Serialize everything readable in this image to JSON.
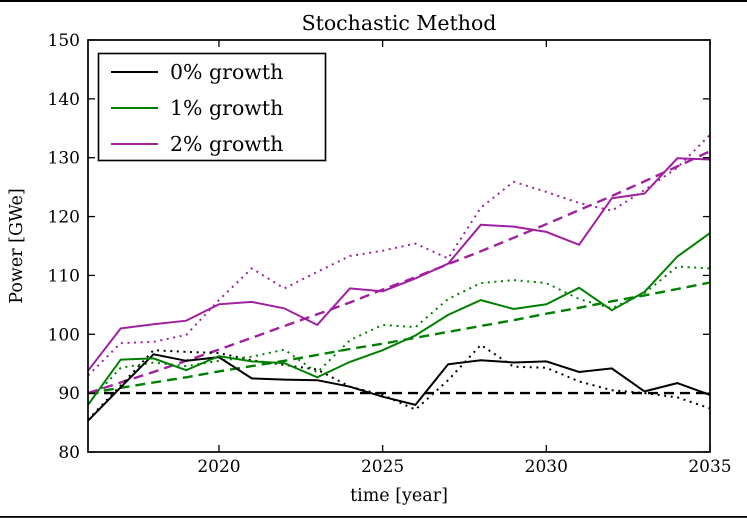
{
  "page": {
    "background": "#ffffff",
    "top_border_color": "#000000",
    "bottom_border_color": "#000000"
  },
  "chart_data": {
    "type": "line",
    "title": "Stochastic Method",
    "xlabel": "time [year]",
    "ylabel": "Power [GWe]",
    "xlim": [
      2016,
      2035
    ],
    "ylim": [
      80,
      150
    ],
    "xticks": [
      2020,
      2025,
      2030,
      2035
    ],
    "yticks": [
      80,
      90,
      100,
      110,
      120,
      130,
      140,
      150
    ],
    "grid": false,
    "legend_position": "upper left",
    "x": [
      2016,
      2017,
      2018,
      2019,
      2020,
      2021,
      2022,
      2023,
      2024,
      2025,
      2026,
      2027,
      2028,
      2029,
      2030,
      2031,
      2032,
      2033,
      2034,
      2035
    ],
    "series": [
      {
        "name": "0% growth dashed target",
        "color": "#000000",
        "style": "dashed",
        "values": [
          90,
          90,
          90,
          90,
          90,
          90,
          90,
          90,
          90,
          90,
          90,
          90,
          90,
          90,
          90,
          90,
          90,
          90,
          90,
          90
        ]
      },
      {
        "name": "1% growth dashed target",
        "color": "#008000",
        "style": "dashed",
        "values": [
          90.0,
          90.9,
          91.8,
          92.7,
          93.7,
          94.6,
          95.5,
          96.5,
          97.5,
          98.4,
          99.4,
          100.4,
          101.4,
          102.4,
          103.5,
          104.5,
          105.6,
          106.6,
          107.7,
          108.8
        ]
      },
      {
        "name": "2% growth dashed target",
        "color": "#a020a0",
        "style": "dashed",
        "values": [
          90.0,
          91.8,
          93.6,
          95.5,
          97.4,
          99.4,
          101.4,
          103.4,
          105.4,
          107.6,
          109.7,
          111.9,
          114.1,
          116.4,
          118.7,
          121.1,
          123.5,
          126.0,
          128.5,
          131.1
        ]
      },
      {
        "name": "0% growth dotted realization",
        "color": "#000000",
        "style": "dotted",
        "values": [
          85.5,
          91.3,
          97.3,
          97.0,
          96.8,
          95.6,
          94.8,
          94.0,
          91.1,
          89.7,
          87.2,
          92.2,
          98.2,
          94.5,
          94.3,
          92.0,
          90.5,
          90.0,
          89.3,
          87.4
        ]
      },
      {
        "name": "1% growth dotted realization",
        "color": "#008000",
        "style": "dotted",
        "values": [
          88.3,
          94.3,
          95.2,
          94.6,
          95.5,
          96.2,
          97.4,
          93.5,
          99.0,
          101.6,
          101.2,
          106.0,
          108.7,
          109.2,
          108.7,
          106.0,
          104.4,
          107.0,
          111.5,
          111.2
        ]
      },
      {
        "name": "2% growth dotted realization",
        "color": "#a020a0",
        "style": "dotted",
        "values": [
          93.0,
          98.5,
          98.7,
          99.9,
          105.8,
          111.2,
          107.8,
          110.6,
          113.3,
          114.2,
          115.4,
          112.9,
          121.5,
          125.9,
          124.2,
          122.3,
          121.0,
          124.5,
          128.3,
          133.9
        ]
      },
      {
        "name": "0% growth solid realization",
        "color": "#000000",
        "style": "solid",
        "values": [
          85.3,
          91.0,
          96.6,
          95.5,
          96.1,
          92.5,
          92.3,
          92.2,
          91.1,
          89.4,
          88.0,
          94.9,
          95.6,
          95.2,
          95.4,
          93.6,
          94.2,
          90.3,
          91.7,
          89.7
        ]
      },
      {
        "name": "1% growth solid realization",
        "color": "#008000",
        "style": "solid",
        "values": [
          88.0,
          95.7,
          95.9,
          93.9,
          96.3,
          95.4,
          95.1,
          92.7,
          95.3,
          97.3,
          99.8,
          103.3,
          105.8,
          104.3,
          105.1,
          107.9,
          104.1,
          107.2,
          113.2,
          117.2
        ]
      },
      {
        "name": "2% growth solid realization",
        "color": "#a020a0",
        "style": "solid",
        "values": [
          93.8,
          101.0,
          101.7,
          102.3,
          105.1,
          105.5,
          104.4,
          101.6,
          107.8,
          107.3,
          109.5,
          112.0,
          118.6,
          118.3,
          117.4,
          115.2,
          123.1,
          123.9,
          129.9,
          129.7
        ]
      }
    ],
    "legend": [
      {
        "label": "0% growth",
        "color": "#000000"
      },
      {
        "label": "1% growth",
        "color": "#008000"
      },
      {
        "label": "2% growth",
        "color": "#a020a0"
      }
    ]
  }
}
